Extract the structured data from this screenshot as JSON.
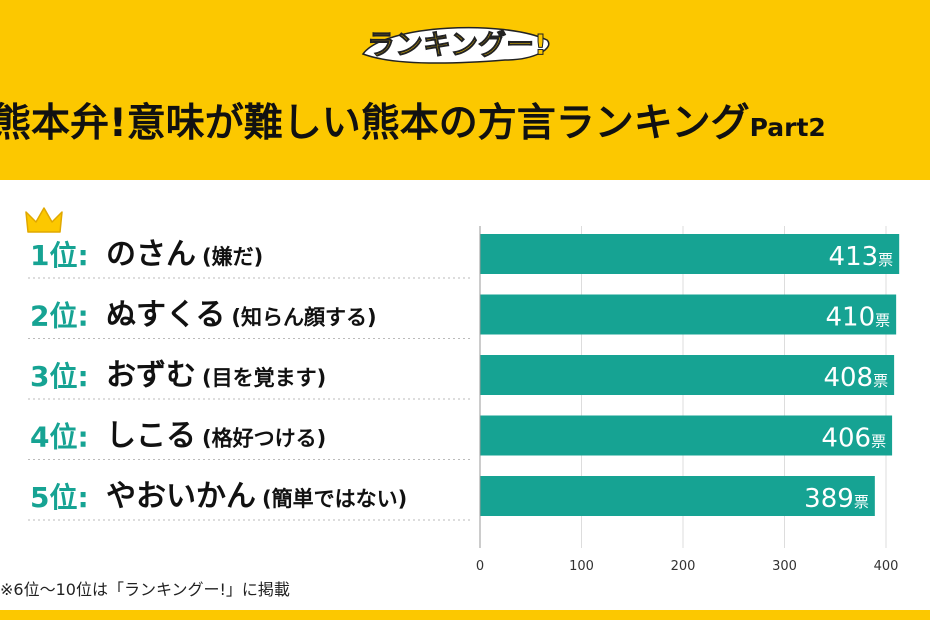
{
  "header": {
    "logo_text": "ランキングー!",
    "title": "熊本弁!意味が難しい熊本の方言ランキング",
    "title_part": "Part2"
  },
  "colors": {
    "header_bg": "#fcc800",
    "bar": "#16a393",
    "rank_number": "#16a393",
    "crown": "#fcc800"
  },
  "chart_data": {
    "type": "bar",
    "orientation": "horizontal",
    "categories": [
      "のさん",
      "ぬすくる",
      "おずむ",
      "しこる",
      "やおいかん"
    ],
    "meanings": [
      "(嫌だ)",
      "(知らん顔する)",
      "(目を覚ます)",
      "(格好つける)",
      "(簡単ではない)"
    ],
    "ranks": [
      "1位:",
      "2位:",
      "3位:",
      "4位:",
      "5位:"
    ],
    "values": [
      413,
      410,
      408,
      406,
      389
    ],
    "unit": "票",
    "xlim": [
      0,
      400
    ],
    "xticks": [
      0,
      100,
      200,
      300,
      400
    ],
    "grid": true
  },
  "footnote": "※6位〜10位は「ランキングー!」に掲載"
}
